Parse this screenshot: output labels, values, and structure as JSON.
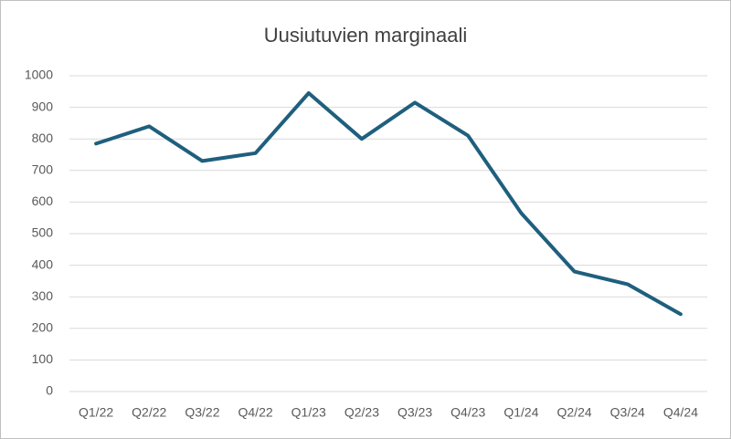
{
  "chart_data": {
    "type": "line",
    "title": "Uusiutuvien marginaali",
    "categories": [
      "Q1/22",
      "Q2/22",
      "Q3/22",
      "Q4/22",
      "Q1/23",
      "Q2/23",
      "Q3/23",
      "Q4/23",
      "Q1/24",
      "Q2/24",
      "Q3/24",
      "Q4/24"
    ],
    "values": [
      785,
      840,
      730,
      755,
      945,
      800,
      915,
      810,
      565,
      380,
      340,
      245
    ],
    "color": "#1f5f7e",
    "ylim": [
      0,
      1000
    ],
    "yticks": [
      0,
      100,
      200,
      300,
      400,
      500,
      600,
      700,
      800,
      900,
      1000
    ],
    "grid": true
  }
}
